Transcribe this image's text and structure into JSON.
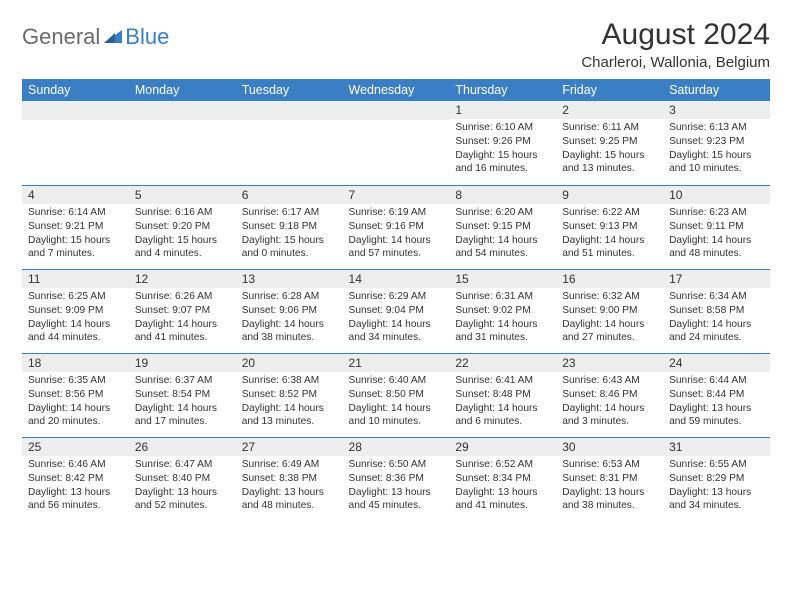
{
  "logo": {
    "text1": "General",
    "text2": "Blue",
    "triangle_color": "#3a7fc4"
  },
  "title": "August 2024",
  "location": "Charleroi, Wallonia, Belgium",
  "colors": {
    "header_bg": "#3a7fc4",
    "header_text": "#ffffff",
    "daynum_bg": "#eeeeee",
    "text": "#333333",
    "row_border": "#3a7fc4"
  },
  "day_headers": [
    "Sunday",
    "Monday",
    "Tuesday",
    "Wednesday",
    "Thursday",
    "Friday",
    "Saturday"
  ],
  "weeks": [
    [
      null,
      null,
      null,
      null,
      {
        "n": "1",
        "sr": "Sunrise: 6:10 AM",
        "ss": "Sunset: 9:26 PM",
        "dl": "Daylight: 15 hours and 16 minutes."
      },
      {
        "n": "2",
        "sr": "Sunrise: 6:11 AM",
        "ss": "Sunset: 9:25 PM",
        "dl": "Daylight: 15 hours and 13 minutes."
      },
      {
        "n": "3",
        "sr": "Sunrise: 6:13 AM",
        "ss": "Sunset: 9:23 PM",
        "dl": "Daylight: 15 hours and 10 minutes."
      }
    ],
    [
      {
        "n": "4",
        "sr": "Sunrise: 6:14 AM",
        "ss": "Sunset: 9:21 PM",
        "dl": "Daylight: 15 hours and 7 minutes."
      },
      {
        "n": "5",
        "sr": "Sunrise: 6:16 AM",
        "ss": "Sunset: 9:20 PM",
        "dl": "Daylight: 15 hours and 4 minutes."
      },
      {
        "n": "6",
        "sr": "Sunrise: 6:17 AM",
        "ss": "Sunset: 9:18 PM",
        "dl": "Daylight: 15 hours and 0 minutes."
      },
      {
        "n": "7",
        "sr": "Sunrise: 6:19 AM",
        "ss": "Sunset: 9:16 PM",
        "dl": "Daylight: 14 hours and 57 minutes."
      },
      {
        "n": "8",
        "sr": "Sunrise: 6:20 AM",
        "ss": "Sunset: 9:15 PM",
        "dl": "Daylight: 14 hours and 54 minutes."
      },
      {
        "n": "9",
        "sr": "Sunrise: 6:22 AM",
        "ss": "Sunset: 9:13 PM",
        "dl": "Daylight: 14 hours and 51 minutes."
      },
      {
        "n": "10",
        "sr": "Sunrise: 6:23 AM",
        "ss": "Sunset: 9:11 PM",
        "dl": "Daylight: 14 hours and 48 minutes."
      }
    ],
    [
      {
        "n": "11",
        "sr": "Sunrise: 6:25 AM",
        "ss": "Sunset: 9:09 PM",
        "dl": "Daylight: 14 hours and 44 minutes."
      },
      {
        "n": "12",
        "sr": "Sunrise: 6:26 AM",
        "ss": "Sunset: 9:07 PM",
        "dl": "Daylight: 14 hours and 41 minutes."
      },
      {
        "n": "13",
        "sr": "Sunrise: 6:28 AM",
        "ss": "Sunset: 9:06 PM",
        "dl": "Daylight: 14 hours and 38 minutes."
      },
      {
        "n": "14",
        "sr": "Sunrise: 6:29 AM",
        "ss": "Sunset: 9:04 PM",
        "dl": "Daylight: 14 hours and 34 minutes."
      },
      {
        "n": "15",
        "sr": "Sunrise: 6:31 AM",
        "ss": "Sunset: 9:02 PM",
        "dl": "Daylight: 14 hours and 31 minutes."
      },
      {
        "n": "16",
        "sr": "Sunrise: 6:32 AM",
        "ss": "Sunset: 9:00 PM",
        "dl": "Daylight: 14 hours and 27 minutes."
      },
      {
        "n": "17",
        "sr": "Sunrise: 6:34 AM",
        "ss": "Sunset: 8:58 PM",
        "dl": "Daylight: 14 hours and 24 minutes."
      }
    ],
    [
      {
        "n": "18",
        "sr": "Sunrise: 6:35 AM",
        "ss": "Sunset: 8:56 PM",
        "dl": "Daylight: 14 hours and 20 minutes."
      },
      {
        "n": "19",
        "sr": "Sunrise: 6:37 AM",
        "ss": "Sunset: 8:54 PM",
        "dl": "Daylight: 14 hours and 17 minutes."
      },
      {
        "n": "20",
        "sr": "Sunrise: 6:38 AM",
        "ss": "Sunset: 8:52 PM",
        "dl": "Daylight: 14 hours and 13 minutes."
      },
      {
        "n": "21",
        "sr": "Sunrise: 6:40 AM",
        "ss": "Sunset: 8:50 PM",
        "dl": "Daylight: 14 hours and 10 minutes."
      },
      {
        "n": "22",
        "sr": "Sunrise: 6:41 AM",
        "ss": "Sunset: 8:48 PM",
        "dl": "Daylight: 14 hours and 6 minutes."
      },
      {
        "n": "23",
        "sr": "Sunrise: 6:43 AM",
        "ss": "Sunset: 8:46 PM",
        "dl": "Daylight: 14 hours and 3 minutes."
      },
      {
        "n": "24",
        "sr": "Sunrise: 6:44 AM",
        "ss": "Sunset: 8:44 PM",
        "dl": "Daylight: 13 hours and 59 minutes."
      }
    ],
    [
      {
        "n": "25",
        "sr": "Sunrise: 6:46 AM",
        "ss": "Sunset: 8:42 PM",
        "dl": "Daylight: 13 hours and 56 minutes."
      },
      {
        "n": "26",
        "sr": "Sunrise: 6:47 AM",
        "ss": "Sunset: 8:40 PM",
        "dl": "Daylight: 13 hours and 52 minutes."
      },
      {
        "n": "27",
        "sr": "Sunrise: 6:49 AM",
        "ss": "Sunset: 8:38 PM",
        "dl": "Daylight: 13 hours and 48 minutes."
      },
      {
        "n": "28",
        "sr": "Sunrise: 6:50 AM",
        "ss": "Sunset: 8:36 PM",
        "dl": "Daylight: 13 hours and 45 minutes."
      },
      {
        "n": "29",
        "sr": "Sunrise: 6:52 AM",
        "ss": "Sunset: 8:34 PM",
        "dl": "Daylight: 13 hours and 41 minutes."
      },
      {
        "n": "30",
        "sr": "Sunrise: 6:53 AM",
        "ss": "Sunset: 8:31 PM",
        "dl": "Daylight: 13 hours and 38 minutes."
      },
      {
        "n": "31",
        "sr": "Sunrise: 6:55 AM",
        "ss": "Sunset: 8:29 PM",
        "dl": "Daylight: 13 hours and 34 minutes."
      }
    ]
  ]
}
